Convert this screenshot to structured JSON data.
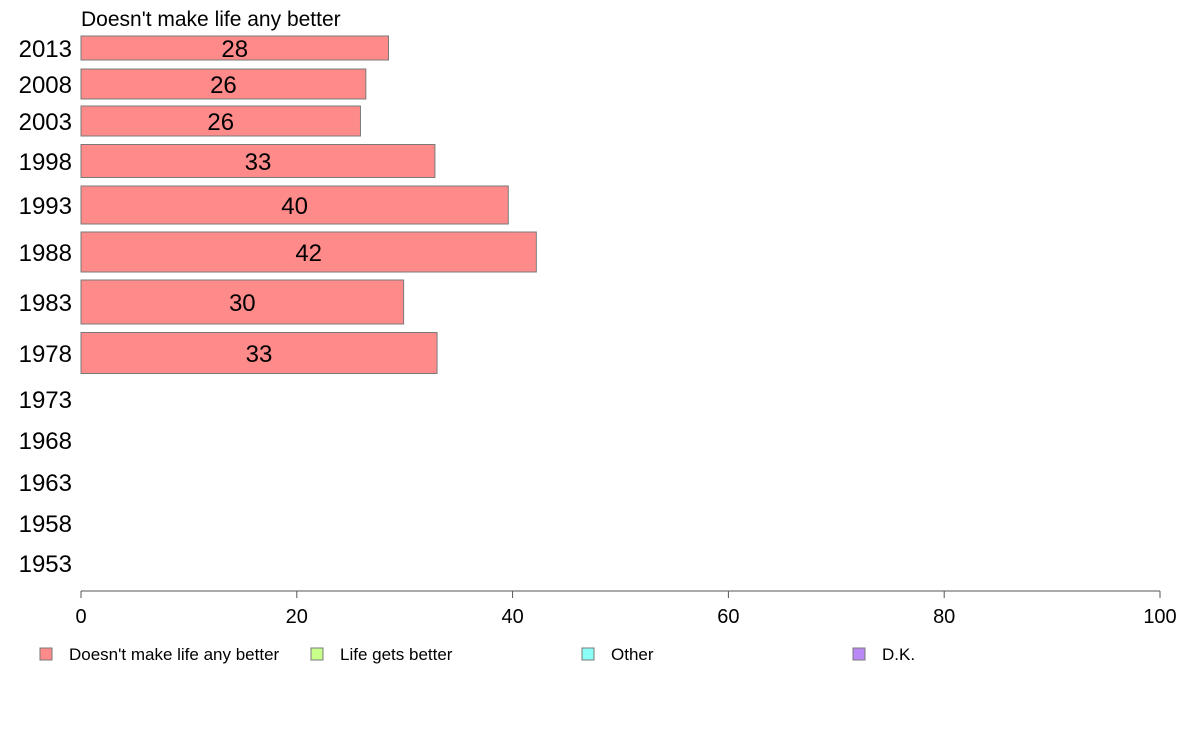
{
  "chart_data": {
    "type": "bar",
    "orientation": "horizontal",
    "title": "Doesn't make life any better",
    "categories": [
      "2013",
      "2008",
      "2003",
      "1998",
      "1993",
      "1988",
      "1983",
      "1978",
      "1973",
      "1968",
      "1963",
      "1958",
      "1953"
    ],
    "series": [
      {
        "name": "Doesn't make life any better",
        "color": "#ff8a8a",
        "values": [
          28.5,
          26.4,
          25.9,
          32.8,
          39.6,
          42.2,
          29.9,
          33.0,
          null,
          null,
          null,
          null,
          null
        ]
      },
      {
        "name": "Life gets better",
        "color": "#c8ff8a",
        "values": [
          null,
          null,
          null,
          null,
          null,
          null,
          null,
          null,
          null,
          null,
          null,
          null,
          null
        ]
      },
      {
        "name": "Other",
        "color": "#8afff5",
        "values": [
          null,
          null,
          null,
          null,
          null,
          null,
          null,
          null,
          null,
          null,
          null,
          null,
          null
        ]
      },
      {
        "name": "D.K.",
        "color": "#b98af5",
        "values": [
          null,
          null,
          null,
          null,
          null,
          null,
          null,
          null,
          null,
          null,
          null,
          null,
          null
        ]
      }
    ],
    "data_labels": [
      "28",
      "26",
      "26",
      "33",
      "40",
      "42",
      "30",
      "33",
      "",
      "",
      "",
      "",
      ""
    ],
    "xlim": [
      0,
      100
    ],
    "xticks": [
      "0",
      "20",
      "40",
      "60",
      "80",
      "100"
    ],
    "grid": false,
    "legend_position": "bottom"
  }
}
